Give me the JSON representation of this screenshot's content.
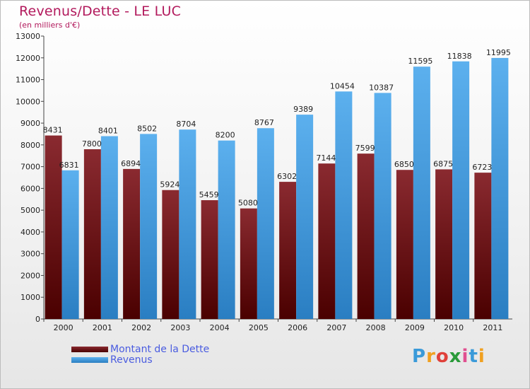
{
  "chart_data": {
    "type": "bar",
    "title": "Revenus/Dette - LE LUC",
    "subtitle": "(en milliers d'€)",
    "categories": [
      "2000",
      "2001",
      "2002",
      "2003",
      "2004",
      "2005",
      "2006",
      "2007",
      "2008",
      "2009",
      "2010",
      "2011"
    ],
    "series": [
      {
        "name": "Montant de la Dette",
        "color": "#7a1a1e",
        "values": [
          8431,
          7800,
          6894,
          5924,
          5459,
          5080,
          6302,
          7144,
          7599,
          6850,
          6875,
          6723
        ]
      },
      {
        "name": "Revenus",
        "color": "#4aa3e6",
        "values": [
          6831,
          8401,
          8502,
          8704,
          8200,
          8767,
          9389,
          10454,
          10387,
          11595,
          11838,
          11995
        ]
      }
    ],
    "ylim": [
      0,
      13000
    ],
    "yticks": [
      0,
      1000,
      2000,
      3000,
      4000,
      5000,
      6000,
      7000,
      8000,
      9000,
      10000,
      11000,
      12000,
      13000
    ],
    "legend_position": "bottom-left",
    "grid": false
  },
  "logo": {
    "text": "Proxiti",
    "letters": [
      "P",
      "r",
      "o",
      "x",
      "i",
      "t",
      "i"
    ],
    "colors": [
      "#3a9ad9",
      "#f0a020",
      "#e0403a",
      "#2a9a3a",
      "#e05090",
      "#3a9ad9",
      "#f0a020"
    ]
  }
}
